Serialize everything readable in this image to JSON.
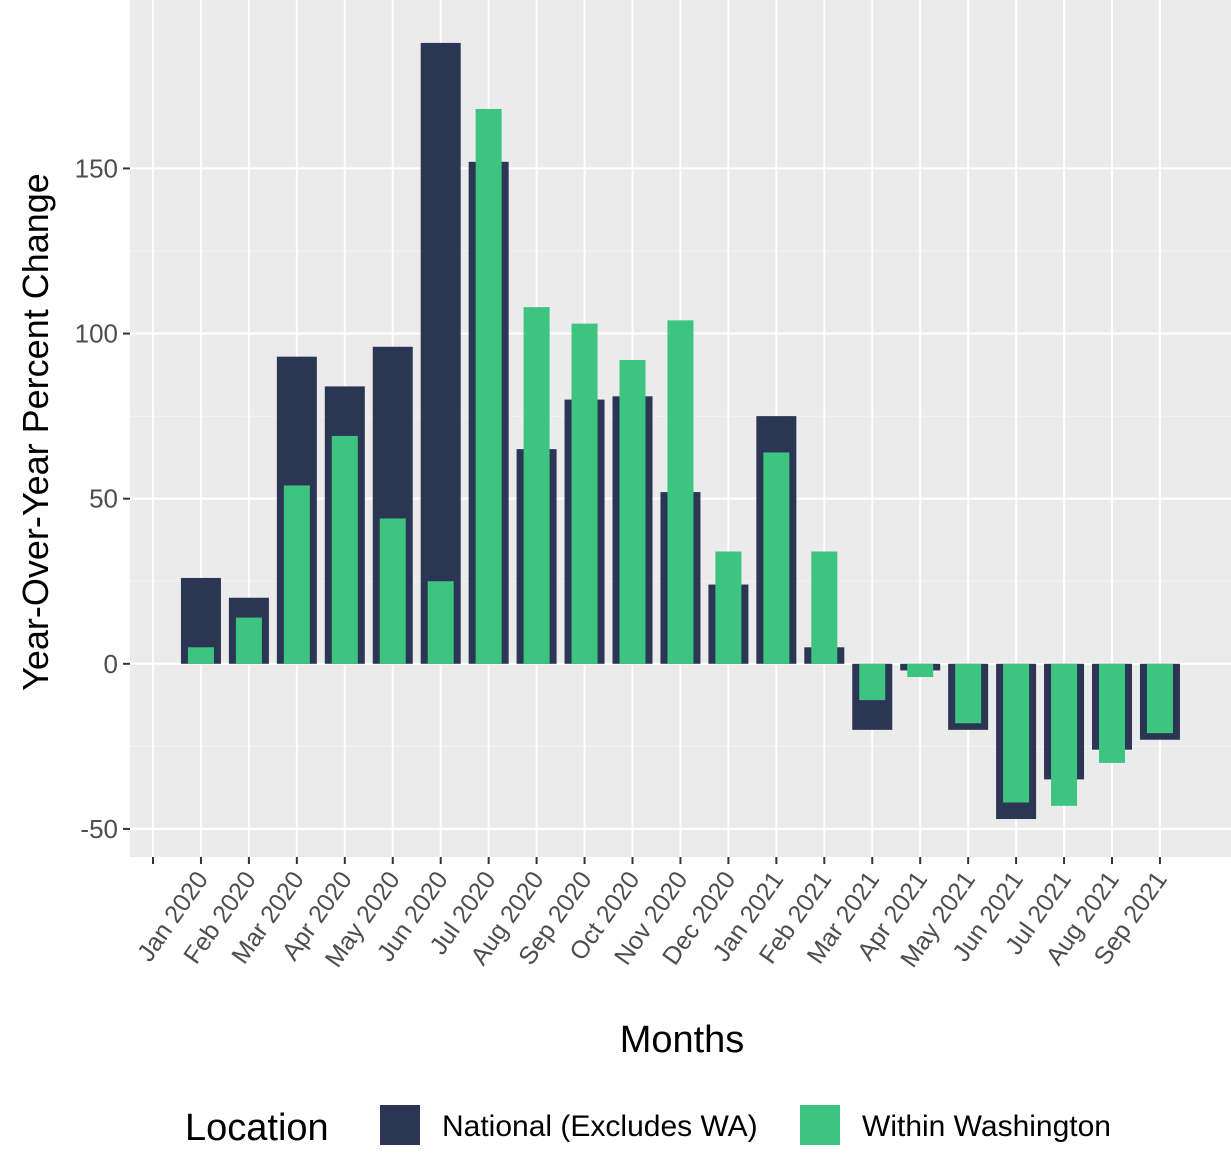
{
  "chart_data": {
    "type": "bar",
    "x_label": "Months",
    "y_label": "Year-Over-Year Percent Change",
    "legend_title": "Location",
    "categories": [
      null,
      "Jan 2020",
      "Feb 2020",
      "Mar 2020",
      "Apr 2020",
      "May 2020",
      "Jun 2020",
      "Jul 2020",
      "Aug 2020",
      "Sep 2020",
      "Oct 2020",
      "Nov 2020",
      "Dec 2020",
      "Jan 2021",
      "Feb 2021",
      "Mar 2021",
      "Apr 2021",
      "May 2021",
      "Jun 2021",
      "Jul 2021",
      "Aug 2021",
      "Sep 2021"
    ],
    "series": [
      {
        "name": "National (Excludes WA)",
        "color": "#2b3554",
        "values": [
          null,
          26,
          20,
          93,
          84,
          96,
          188,
          152,
          65,
          80,
          81,
          52,
          24,
          75,
          5,
          -20,
          -2,
          -20,
          -47,
          -35,
          -26,
          -23
        ]
      },
      {
        "name": "Within Washington",
        "color": "#3dc481",
        "values": [
          null,
          5,
          14,
          54,
          69,
          44,
          25,
          168,
          108,
          103,
          92,
          104,
          34,
          64,
          34,
          -11,
          -4,
          -18,
          -42,
          -43,
          -30,
          -21
        ]
      }
    ],
    "ylim": [
      -58.5,
      201
    ],
    "yticks": [
      -50,
      0,
      50,
      100,
      150
    ],
    "grid": true,
    "legend_position": "bottom"
  }
}
